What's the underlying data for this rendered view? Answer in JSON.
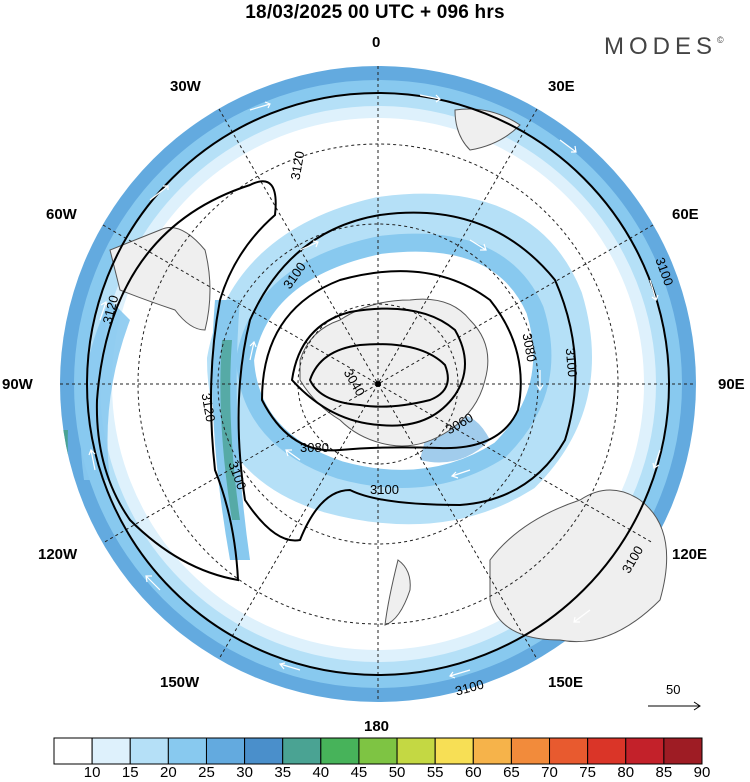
{
  "title": "18/03/2025  00 UTC  + 096 hrs",
  "brand": {
    "name": "MODES",
    "mark": "©"
  },
  "projection": "south-polar stereographic",
  "longitude_labels": {
    "top": "0",
    "upper_left": "30W",
    "upper_right": "30E",
    "mid_upper_left": "60W",
    "mid_upper_right": "60E",
    "left": "90W",
    "right": "90E",
    "mid_lower_left": "120W",
    "mid_lower_right": "120E",
    "lower_left": "150W",
    "lower_right": "150E",
    "bottom": "180"
  },
  "contour_labels": [
    "3120",
    "3120",
    "3120",
    "3100",
    "3100",
    "3100",
    "3100",
    "3100",
    "3100",
    "3100",
    "3080",
    "3080",
    "3060",
    "3040"
  ],
  "wind_reference": {
    "value": "50"
  },
  "colorbar": {
    "ticks": [
      "10",
      "15",
      "20",
      "25",
      "30",
      "35",
      "40",
      "45",
      "50",
      "55",
      "60",
      "65",
      "70",
      "75",
      "80",
      "85",
      "90"
    ],
    "colors": [
      "#ffffff",
      "#def1fc",
      "#b5e0f7",
      "#88c9ef",
      "#63aadf",
      "#4a8fcb",
      "#4aa393",
      "#47b35a",
      "#7ec443",
      "#c4d843",
      "#f7df55",
      "#f6b34a",
      "#f28b3b",
      "#e85a2f",
      "#da3528",
      "#c3212a",
      "#9e1c24"
    ]
  },
  "map_colors": {
    "land": "#efefef",
    "coast": "#555555",
    "contour": "#000000",
    "grid": "#222222",
    "vector": "#ffffff"
  }
}
